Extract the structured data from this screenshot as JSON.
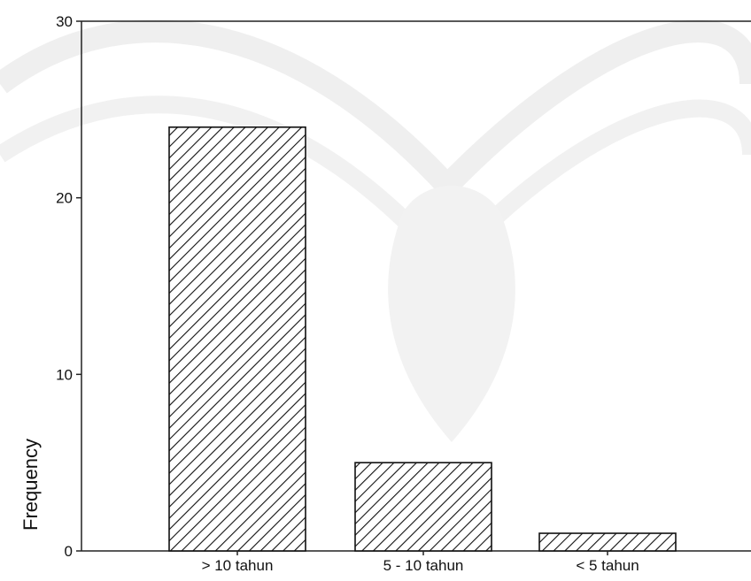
{
  "chart_data": {
    "type": "bar",
    "categories": [
      "> 10 tahun",
      "5 - 10 tahun",
      "< 5 tahun"
    ],
    "values": [
      24,
      5,
      1
    ],
    "xlabel": "",
    "ylabel": "Frequency",
    "ylim": [
      0,
      30
    ],
    "yticks": [
      "0",
      "10",
      "20",
      "30"
    ],
    "grid": false,
    "bar_fill": "diagonal-hatch",
    "colors": {
      "bar_stroke": "#111111",
      "hatch": "#111111",
      "axis": "#222222",
      "watermark": "#d9d9d9"
    }
  }
}
